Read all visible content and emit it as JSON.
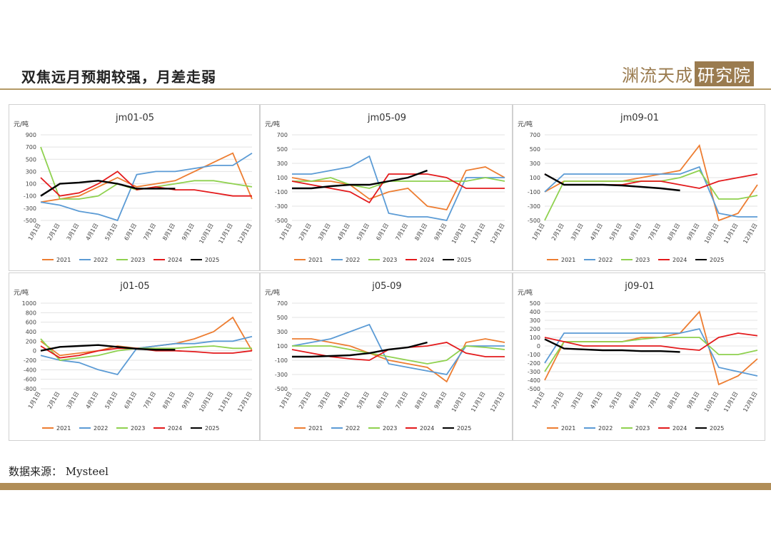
{
  "slide": {
    "title": "双焦远月预期较强，月差走弱",
    "logo_text": "渊流天成",
    "logo_box": "研究院",
    "source": "数据来源： Mysteel"
  },
  "colors": {
    "2021": "#ed7d31",
    "2022": "#5b9bd5",
    "2023": "#8fd14f",
    "2024": "#e31a1c",
    "2025": "#000000",
    "rule": "#b49a66",
    "bottom_bar": "#b08d57"
  },
  "chart_data": [
    {
      "id": "jm01-05",
      "type": "line",
      "title": "jm01-05",
      "ylabel": "元/吨",
      "ylim": [
        -500,
        900
      ],
      "yticks": [
        900,
        700,
        500,
        300,
        100,
        -100,
        -300,
        -500
      ],
      "x": [
        "1月1日",
        "2月1日",
        "3月1日",
        "4月1日",
        "5月1日",
        "6月1日",
        "7月1日",
        "8月1日",
        "9月1日",
        "10月1日",
        "11月1日",
        "12月1日"
      ],
      "series": [
        {
          "name": "2021",
          "values": [
            -200,
            -150,
            -100,
            50,
            200,
            50,
            100,
            150,
            300,
            450,
            600,
            -150
          ]
        },
        {
          "name": "2022",
          "values": [
            -200,
            -250,
            -350,
            -400,
            -500,
            250,
            300,
            300,
            350,
            400,
            400,
            600
          ]
        },
        {
          "name": "2023",
          "values": [
            700,
            -150,
            -150,
            -100,
            100,
            0,
            50,
            100,
            150,
            150,
            100,
            50
          ]
        },
        {
          "name": "2024",
          "values": [
            200,
            -100,
            -50,
            100,
            300,
            0,
            50,
            0,
            0,
            -50,
            -100,
            -100
          ]
        },
        {
          "name": "2025",
          "values": [
            -100,
            100,
            120,
            150,
            100,
            20,
            20,
            20,
            null,
            null,
            null,
            null
          ]
        }
      ]
    },
    {
      "id": "jm05-09",
      "type": "line",
      "title": "jm05-09",
      "ylabel": "元/吨",
      "ylim": [
        -500,
        700
      ],
      "yticks": [
        700,
        500,
        300,
        100,
        -100,
        -300,
        -500
      ],
      "x": [
        "1月1日",
        "2月1日",
        "3月1日",
        "4月1日",
        "5月1日",
        "6月1日",
        "7月1日",
        "8月1日",
        "9月1日",
        "10月1日",
        "11月1日",
        "12月1日"
      ],
      "series": [
        {
          "name": "2021",
          "values": [
            100,
            50,
            50,
            0,
            -200,
            -100,
            -50,
            -300,
            -350,
            200,
            250,
            100
          ]
        },
        {
          "name": "2022",
          "values": [
            150,
            150,
            200,
            250,
            400,
            -400,
            -450,
            -450,
            -500,
            100,
            100,
            100
          ]
        },
        {
          "name": "2023",
          "values": [
            50,
            50,
            100,
            0,
            -50,
            50,
            50,
            50,
            50,
            50,
            100,
            50
          ]
        },
        {
          "name": "2024",
          "values": [
            50,
            0,
            -50,
            -100,
            -250,
            150,
            150,
            150,
            100,
            -50,
            -50,
            -50
          ]
        },
        {
          "name": "2025",
          "values": [
            -50,
            -50,
            -20,
            0,
            0,
            50,
            100,
            200,
            null,
            null,
            null,
            null
          ]
        }
      ]
    },
    {
      "id": "jm09-01",
      "type": "line",
      "title": "jm09-01",
      "ylabel": "元/吨",
      "ylim": [
        -500,
        700
      ],
      "yticks": [
        700,
        500,
        300,
        100,
        -100,
        -300,
        -500
      ],
      "x": [
        "1月1日",
        "2月1日",
        "3月1日",
        "4月1日",
        "5月1日",
        "6月1日",
        "7月1日",
        "8月1日",
        "9月1日",
        "10月1日",
        "11月1日",
        "12月1日"
      ],
      "series": [
        {
          "name": "2021",
          "values": [
            -100,
            50,
            50,
            50,
            50,
            100,
            150,
            200,
            550,
            -500,
            -400,
            0
          ]
        },
        {
          "name": "2022",
          "values": [
            -100,
            150,
            150,
            150,
            150,
            150,
            150,
            150,
            250,
            -400,
            -450,
            -450
          ]
        },
        {
          "name": "2023",
          "values": [
            -500,
            50,
            50,
            50,
            50,
            50,
            50,
            100,
            200,
            -200,
            -200,
            -150
          ]
        },
        {
          "name": "2024",
          "values": [
            150,
            0,
            0,
            0,
            0,
            50,
            50,
            0,
            -50,
            50,
            100,
            150
          ]
        },
        {
          "name": "2025",
          "values": [
            150,
            0,
            0,
            0,
            -10,
            -30,
            -50,
            -80,
            null,
            null,
            null,
            null
          ]
        }
      ]
    },
    {
      "id": "j01-05",
      "type": "line",
      "title": "j01-05",
      "ylabel": "元/吨",
      "ylim": [
        -800,
        1000
      ],
      "yticks": [
        1000,
        800,
        600,
        400,
        200,
        0,
        -200,
        -400,
        -600,
        -800
      ],
      "x": [
        "1月1日",
        "2月1日",
        "3月1日",
        "4月1日",
        "5月1日",
        "6月1日",
        "7月1日",
        "8月1日",
        "9月1日",
        "10月1日",
        "11月1日",
        "12月1日"
      ],
      "series": [
        {
          "name": "2021",
          "values": [
            200,
            -100,
            -50,
            0,
            100,
            50,
            100,
            150,
            250,
            400,
            700,
            0
          ]
        },
        {
          "name": "2022",
          "values": [
            -100,
            -200,
            -250,
            -400,
            -500,
            50,
            100,
            150,
            150,
            200,
            200,
            300
          ]
        },
        {
          "name": "2023",
          "values": [
            250,
            -200,
            -150,
            -100,
            0,
            50,
            50,
            50,
            80,
            100,
            50,
            50
          ]
        },
        {
          "name": "2024",
          "values": [
            100,
            -150,
            -100,
            0,
            50,
            50,
            0,
            0,
            -20,
            -50,
            -50,
            0
          ]
        },
        {
          "name": "2025",
          "values": [
            0,
            80,
            100,
            120,
            80,
            40,
            20,
            20,
            null,
            null,
            null,
            null
          ]
        }
      ]
    },
    {
      "id": "j05-09",
      "type": "line",
      "title": "j05-09",
      "ylabel": "元/吨",
      "ylim": [
        -500,
        700
      ],
      "yticks": [
        700,
        500,
        300,
        100,
        -100,
        -300,
        -500
      ],
      "x": [
        "1月1日",
        "2月1日",
        "3月1日",
        "4月1日",
        "5月1日",
        "6月1日",
        "7月1日",
        "8月1日",
        "9月1日",
        "10月1日",
        "11月1日",
        "12月1日"
      ],
      "series": [
        {
          "name": "2021",
          "values": [
            200,
            200,
            150,
            100,
            0,
            -100,
            -150,
            -200,
            -400,
            150,
            200,
            150
          ]
        },
        {
          "name": "2022",
          "values": [
            100,
            150,
            200,
            300,
            400,
            -150,
            -200,
            -250,
            -300,
            100,
            100,
            100
          ]
        },
        {
          "name": "2023",
          "values": [
            100,
            100,
            100,
            50,
            0,
            -50,
            -100,
            -150,
            -100,
            100,
            80,
            50
          ]
        },
        {
          "name": "2024",
          "values": [
            50,
            0,
            -50,
            -80,
            -100,
            50,
            80,
            100,
            150,
            0,
            -50,
            -50
          ]
        },
        {
          "name": "2025",
          "values": [
            -50,
            -50,
            -40,
            -30,
            0,
            50,
            80,
            150,
            null,
            null,
            null,
            null
          ]
        }
      ]
    },
    {
      "id": "j09-01",
      "type": "line",
      "title": "j09-01",
      "ylabel": "元/吨",
      "ylim": [
        -500,
        500
      ],
      "yticks": [
        500,
        400,
        300,
        200,
        100,
        0,
        -100,
        -200,
        -300,
        -400,
        -500
      ],
      "x": [
        "1月1日",
        "2月1日",
        "3月1日",
        "4月1日",
        "5月1日",
        "6月1日",
        "7月1日",
        "8月1日",
        "9月1日",
        "10月1日",
        "11月1日",
        "12月1日"
      ],
      "series": [
        {
          "name": "2021",
          "values": [
            -400,
            50,
            50,
            50,
            50,
            100,
            100,
            150,
            400,
            -450,
            -350,
            -150
          ]
        },
        {
          "name": "2022",
          "values": [
            -200,
            150,
            150,
            150,
            150,
            150,
            150,
            150,
            200,
            -250,
            -300,
            -350
          ]
        },
        {
          "name": "2023",
          "values": [
            -300,
            50,
            50,
            50,
            50,
            80,
            100,
            100,
            100,
            -100,
            -100,
            -50
          ]
        },
        {
          "name": "2024",
          "values": [
            100,
            50,
            0,
            0,
            0,
            0,
            0,
            -30,
            -50,
            100,
            150,
            120
          ]
        },
        {
          "name": "2025",
          "values": [
            80,
            -30,
            -40,
            -50,
            -50,
            -60,
            -60,
            -70,
            null,
            null,
            null,
            null
          ]
        }
      ]
    }
  ]
}
